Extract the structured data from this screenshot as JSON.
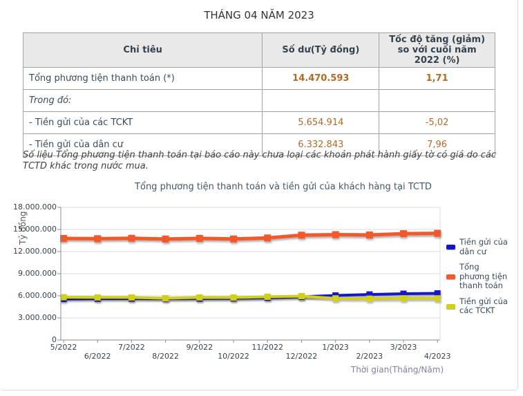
{
  "page": {
    "title": "THÁNG 04 NĂM 2023"
  },
  "table": {
    "headers": [
      "Chỉ tiêu",
      "Số dư(Tỷ đồng)",
      "Tốc độ tăng (giảm) so với cuối năm 2022 (%)"
    ],
    "rows": [
      {
        "label": "Tổng phương tiện thanh toán (*)",
        "value": "14.470.593",
        "growth": "1,71"
      },
      {
        "label": "Trong đó:",
        "value": "",
        "growth": ""
      },
      {
        "label": "- Tiền gửi của các TCKT",
        "value": "5.654.914",
        "growth": "-5,02"
      },
      {
        "label": "- Tiền gửi của dân cư",
        "value": "6.332.843",
        "growth": "7,96"
      }
    ]
  },
  "footnote": "Số liệu Tổng phương tiện thanh toán tại báo cáo này chưa loại các khoản phát hành giấy tờ có giá do các TCTD khác trong nước mua.",
  "chart_data": {
    "type": "line",
    "title": "Tổng phương tiện thanh toán và tiền gửi của khách hàng tại TCTD",
    "ylabel": "Tỷ đồng",
    "xlabel": "Thời gian(Tháng/Năm)",
    "categories": [
      "5/2022",
      "6/2022",
      "7/2022",
      "8/2022",
      "9/2022",
      "10/2022",
      "11/2022",
      "12/2022",
      "1/2023",
      "2/2023",
      "3/2023",
      "4/2023"
    ],
    "y_ticks": [
      "0",
      "3.000.000",
      "6.000.000",
      "9.000.000",
      "12.000.000",
      "15.000.000",
      "18.000.000"
    ],
    "ylim": [
      0,
      18000000
    ],
    "grid": "horizontal",
    "legend_position": "right",
    "series": [
      {
        "name": "Tiền gửi của dân cư",
        "color": "#1414cc",
        "z": 1,
        "marker": 9,
        "width": 4,
        "values": [
          5569000,
          5611000,
          5629000,
          5631000,
          5633000,
          5663000,
          5744000,
          5866000,
          6044000,
          6180000,
          6281000,
          6332843
        ]
      },
      {
        "name": "Tổng phương tiện thanh toán",
        "color": "#f2592b",
        "z": 3,
        "marker": 10,
        "width": 5,
        "values": [
          13783000,
          13745000,
          13802000,
          13701000,
          13788000,
          13710000,
          13845000,
          14227306,
          14300000,
          14250000,
          14430000,
          14470593
        ]
      },
      {
        "name": "Tiền gửi của các TCKT",
        "color": "#d0d014",
        "z": 2,
        "marker": 9,
        "width": 4,
        "values": [
          5807000,
          5784000,
          5778000,
          5673000,
          5780000,
          5764000,
          5866000,
          5954000,
          5650000,
          5617000,
          5660000,
          5654914
        ]
      }
    ]
  },
  "colors": {
    "value_text": "#b06a28",
    "header_bg": "#e9e9e9",
    "axis": "#8c8c8c",
    "grid": "#dcdcdc",
    "xaxis_title": "#8080a0"
  }
}
